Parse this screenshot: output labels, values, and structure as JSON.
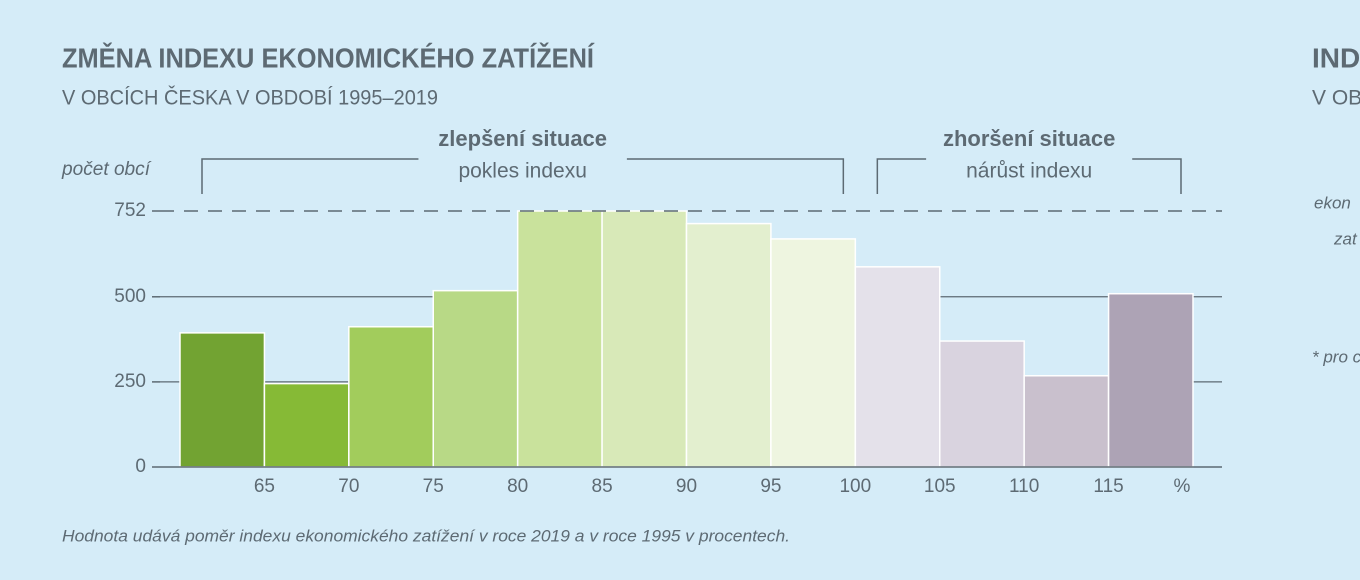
{
  "chart_data": {
    "type": "histogram",
    "title": "ZMĚNA INDEXU EKONOMICKÉHO ZATÍŽENÍ",
    "subtitle": "V OBCÍCH ČESKA V OBDOBÍ 1995–2019",
    "y_label": "počet obcí",
    "x_unit_label": "%",
    "footnote": "Hodnota udává poměr indexu ekonomického zatížení v roce 2019 a v roce 1995 v procentech.",
    "bins": [
      60,
      65,
      70,
      75,
      80,
      85,
      90,
      95,
      100,
      105,
      110,
      115,
      120
    ],
    "values": [
      394,
      245,
      412,
      518,
      752,
      752,
      715,
      670,
      588,
      370,
      268,
      509
    ],
    "colors": [
      "#72a332",
      "#86ba36",
      "#a2cc5c",
      "#b8d986",
      "#c9e29c",
      "#d8e9b8",
      "#e3efcf",
      "#eef5e0",
      "#e4e1ea",
      "#d9d3df",
      "#c9c0cd",
      "#ada3b5"
    ],
    "xlim": [
      60,
      120
    ],
    "xticks": [
      65,
      70,
      75,
      80,
      85,
      90,
      95,
      100,
      105,
      110,
      115
    ],
    "ylim": [
      0,
      752
    ],
    "yticks": [
      0,
      250,
      500,
      752
    ],
    "grid": true,
    "annotations": [
      {
        "title": "zlepšení situace",
        "text": "pokles indexu",
        "range": [
          60,
          100
        ]
      },
      {
        "title": "zhoršení situace",
        "text": "nárůst indexu",
        "range": [
          100,
          120
        ]
      }
    ]
  },
  "side_panel": {
    "title": "IND",
    "subtitle": "V OB",
    "label_1": "ekon",
    "label_2": "zat",
    "note": "* pro c"
  }
}
